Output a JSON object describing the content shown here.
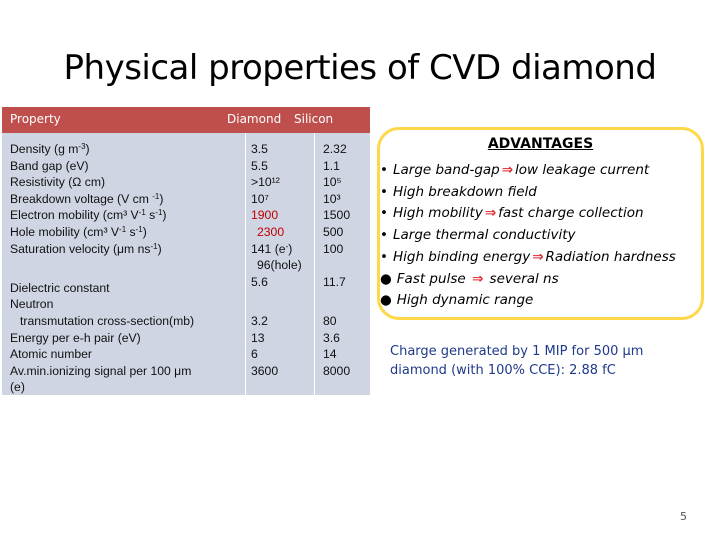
{
  "title": "Physical properties of CVD diamond",
  "table": {
    "header": {
      "property": "Property",
      "diamond": "Diamond",
      "silicon": "Silicon"
    },
    "rows": [
      {
        "property": "Density (g m-3)",
        "diamond": "3.5",
        "silicon": "2.32"
      },
      {
        "property": "Band gap (eV)",
        "diamond": "5.5",
        "silicon": "1.1"
      },
      {
        "property": "Resistivity  (Ω cm)",
        "diamond": ">10¹²",
        "silicon": "10⁵"
      },
      {
        "property": "Breakdown  voltage (V cm-1)",
        "diamond": "10⁷",
        "silicon": "10³"
      },
      {
        "property": "Electron mobility (cm³  V-1 s-1)",
        "diamond": "1900",
        "silicon": "1500"
      },
      {
        "property": "Hole mobility (cm³  V-1 s-1)",
        "diamond": "2300",
        "silicon": "500"
      },
      {
        "property": "Saturation velocity (μm ns-1)",
        "diamond": "141 (e-)",
        "silicon": "100"
      },
      {
        "property": "",
        "diamond": "96(hole)",
        "silicon": ""
      },
      {
        "property": "Dielectric constant",
        "diamond": "5.6",
        "silicon": "11.7"
      },
      {
        "property": "Neutron",
        "diamond": "",
        "silicon": ""
      },
      {
        "property": "transmutation cross-section(mb)",
        "diamond": "3.2",
        "silicon": "80"
      },
      {
        "property": "Energy per e-h pair (eV)",
        "diamond": "13",
        "silicon": "3.6"
      },
      {
        "property": "Atomic number",
        "diamond": "6",
        "silicon": "14"
      },
      {
        "property": "Av.min.ionizing signal per 100 μm",
        "diamond": "3600",
        "silicon": "8000"
      },
      {
        "property": "(e)",
        "diamond": "",
        "silicon": ""
      }
    ]
  },
  "advantages": {
    "title": "ADVANTAGES",
    "items": [
      {
        "bullet": "•",
        "text": "Large band-gap",
        "arrow": "⇒",
        "after": "low leakage current"
      },
      {
        "bullet": "•",
        "text": "High breakdown field",
        "arrow": "",
        "after": ""
      },
      {
        "bullet": "•",
        "text": "High mobility",
        "arrow": "⇒",
        "after": "fast charge collection"
      },
      {
        "bullet": "•",
        "text": "Large thermal conductivity",
        "arrow": "",
        "after": ""
      },
      {
        "bullet": "•",
        "text": "High binding energy",
        "arrow": "⇒",
        "after": "Radiation hardness"
      },
      {
        "bullet": "●",
        "text": "Fast pulse ",
        "arrow": "⇒",
        "after": " several ns"
      },
      {
        "bullet": "●",
        "text": "High dynamic range",
        "arrow": "",
        "after": ""
      }
    ]
  },
  "charge_note": {
    "line1": "Charge generated by 1 MIP for 500 μm",
    "line2": "diamond (with 100% CCE):  2.88 fC"
  },
  "page_number": "5",
  "colors": {
    "table_header": "#bf4f4c",
    "table_body": "#d0d5e4",
    "box_border": "#ffd84a",
    "arrow": "#e0262d",
    "note_text": "#1f3a8a",
    "highlight": "#c00000"
  }
}
